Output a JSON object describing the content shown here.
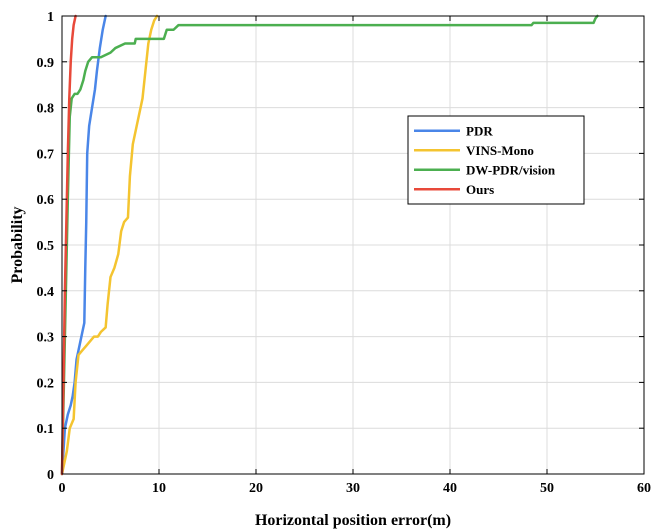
{
  "chart_data": {
    "type": "line",
    "title": "",
    "xlabel": "Horizontal position error(m)",
    "ylabel": "Probability",
    "xlim": [
      0,
      60
    ],
    "ylim": [
      0,
      1
    ],
    "xticks": [
      "0",
      "10",
      "20",
      "30",
      "40",
      "50",
      "60"
    ],
    "yticks": [
      "0",
      "0.1",
      "0.2",
      "0.3",
      "0.4",
      "0.5",
      "0.6",
      "0.7",
      "0.8",
      "0.9",
      "1"
    ],
    "grid": true,
    "legend_position": "center-right",
    "series": [
      {
        "name": "PDR",
        "color": "#4a86e8",
        "points": [
          [
            0,
            0
          ],
          [
            0.3,
            0.1
          ],
          [
            0.6,
            0.13
          ],
          [
            0.9,
            0.15
          ],
          [
            1.1,
            0.17
          ],
          [
            1.3,
            0.2
          ],
          [
            1.5,
            0.25
          ],
          [
            1.7,
            0.27
          ],
          [
            1.9,
            0.29
          ],
          [
            2.1,
            0.31
          ],
          [
            2.3,
            0.33
          ],
          [
            2.4,
            0.45
          ],
          [
            2.5,
            0.55
          ],
          [
            2.6,
            0.7
          ],
          [
            2.8,
            0.76
          ],
          [
            3.1,
            0.8
          ],
          [
            3.4,
            0.84
          ],
          [
            3.6,
            0.88
          ],
          [
            3.9,
            0.93
          ],
          [
            4.2,
            0.97
          ],
          [
            4.5,
            1
          ]
        ]
      },
      {
        "name": "VINS-Mono",
        "color": "#f4c430",
        "points": [
          [
            0,
            0
          ],
          [
            0.5,
            0.05
          ],
          [
            0.8,
            0.1
          ],
          [
            1.0,
            0.11
          ],
          [
            1.2,
            0.12
          ],
          [
            1.4,
            0.2
          ],
          [
            1.7,
            0.26
          ],
          [
            2.1,
            0.27
          ],
          [
            2.5,
            0.28
          ],
          [
            2.9,
            0.29
          ],
          [
            3.3,
            0.3
          ],
          [
            3.7,
            0.3
          ],
          [
            4.0,
            0.31
          ],
          [
            4.5,
            0.32
          ],
          [
            4.7,
            0.37
          ],
          [
            5.0,
            0.43
          ],
          [
            5.4,
            0.45
          ],
          [
            5.8,
            0.48
          ],
          [
            6.1,
            0.53
          ],
          [
            6.4,
            0.55
          ],
          [
            6.8,
            0.56
          ],
          [
            7.0,
            0.65
          ],
          [
            7.3,
            0.72
          ],
          [
            7.7,
            0.76
          ],
          [
            8.0,
            0.79
          ],
          [
            8.3,
            0.82
          ],
          [
            8.6,
            0.88
          ],
          [
            8.9,
            0.94
          ],
          [
            9.2,
            0.97
          ],
          [
            9.5,
            0.99
          ],
          [
            9.8,
            1
          ]
        ]
      },
      {
        "name": "DW-PDR/vision",
        "color": "#4caf50",
        "points": [
          [
            0,
            0
          ],
          [
            0.3,
            0.3
          ],
          [
            0.6,
            0.6
          ],
          [
            0.8,
            0.78
          ],
          [
            1.0,
            0.82
          ],
          [
            1.3,
            0.83
          ],
          [
            1.6,
            0.83
          ],
          [
            1.9,
            0.84
          ],
          [
            2.2,
            0.86
          ],
          [
            2.4,
            0.88
          ],
          [
            2.7,
            0.9
          ],
          [
            3.1,
            0.91
          ],
          [
            4.0,
            0.91
          ],
          [
            5.0,
            0.92
          ],
          [
            5.5,
            0.93
          ],
          [
            6.5,
            0.94
          ],
          [
            7.5,
            0.94
          ],
          [
            7.6,
            0.95
          ],
          [
            10.5,
            0.95
          ],
          [
            10.8,
            0.97
          ],
          [
            11.5,
            0.97
          ],
          [
            12.0,
            0.98
          ],
          [
            48.4,
            0.98
          ],
          [
            48.6,
            0.985
          ],
          [
            54.8,
            0.985
          ],
          [
            55.0,
            0.995
          ],
          [
            55.2,
            1
          ]
        ]
      },
      {
        "name": "Ours",
        "color": "#e8493a",
        "points": [
          [
            0,
            0
          ],
          [
            0.15,
            0.2
          ],
          [
            0.3,
            0.4
          ],
          [
            0.45,
            0.55
          ],
          [
            0.6,
            0.7
          ],
          [
            0.75,
            0.82
          ],
          [
            0.9,
            0.9
          ],
          [
            1.05,
            0.95
          ],
          [
            1.2,
            0.98
          ],
          [
            1.4,
            1
          ]
        ]
      }
    ]
  }
}
